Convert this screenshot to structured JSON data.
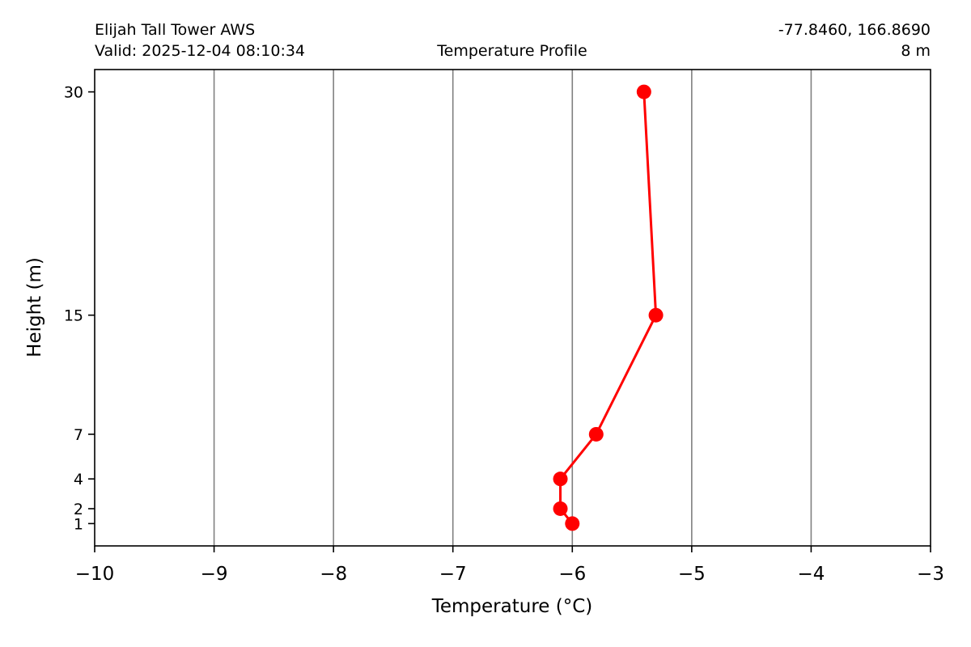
{
  "header": {
    "station": "Elijah Tall Tower AWS",
    "valid": "Valid: 2025-12-04 08:10:34",
    "title": "Temperature Profile",
    "coords": "-77.8460, 166.8690",
    "elevation": "8 m"
  },
  "chart_data": {
    "type": "line",
    "title": "Temperature Profile",
    "xlabel": "Temperature (°C)",
    "ylabel": "Height (m)",
    "xlim": [
      -10,
      -3
    ],
    "ylim": [
      -0.5,
      31.5
    ],
    "x_ticks": [
      -10,
      -9,
      -8,
      -7,
      -6,
      -5,
      -4,
      -3
    ],
    "x_tick_labels": [
      "−10",
      "−9",
      "−8",
      "−7",
      "−6",
      "−5",
      "−4",
      "−3"
    ],
    "y_ticks": [
      1,
      2,
      4,
      7,
      15,
      30
    ],
    "y_tick_labels": [
      "1",
      "2",
      "4",
      "7",
      "15",
      "30"
    ],
    "grid": "vertical",
    "series": [
      {
        "color": "#ff0000",
        "points": [
          {
            "temperature": -6.0,
            "height": 1
          },
          {
            "temperature": -6.1,
            "height": 2
          },
          {
            "temperature": -6.1,
            "height": 4
          },
          {
            "temperature": -5.8,
            "height": 7
          },
          {
            "temperature": -5.3,
            "height": 15
          },
          {
            "temperature": -5.4,
            "height": 30
          }
        ]
      }
    ],
    "colors": {
      "line": "#ff0000",
      "grid": "#808080",
      "axes": "#000000"
    }
  }
}
